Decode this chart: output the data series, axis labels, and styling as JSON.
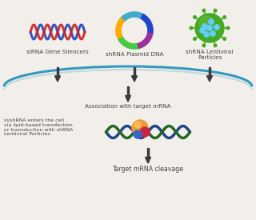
{
  "bg_color": "#f2efeb",
  "labels": {
    "sirna": "siRNA Gene Silencers",
    "shrna_plasmid": "shRNA Plasmid DNA",
    "shrna_lentiviral": "shRNA Lentiviral\nParticles",
    "association": "Association with target mRNA",
    "cell_entry": "si/shRNA enters the cell\nvia lipid-based transfection\nor transduction with shRNA\nLentiviral Particles",
    "cleavage": "Target mRNA cleavage"
  },
  "arrow_color": "#3a3a3a",
  "dna_red": "#cc2222",
  "dna_blue": "#2244bb",
  "curve_color_top": "#3399bb",
  "curve_color_bot": "#aaccdd",
  "plasmid_colors": [
    "#993399",
    "#2244cc",
    "#44aacc",
    "#ffaa00",
    "#44cc44"
  ],
  "virus_green": "#44aa22",
  "virus_spot": "#66ccff",
  "text_color": "#444444",
  "font_size": 5.2,
  "mrna_green": "#226622",
  "mrna_blue": "#224488",
  "risc_orange": "#ee9933",
  "risc_red": "#cc2244",
  "risc_blue": "#3366cc"
}
